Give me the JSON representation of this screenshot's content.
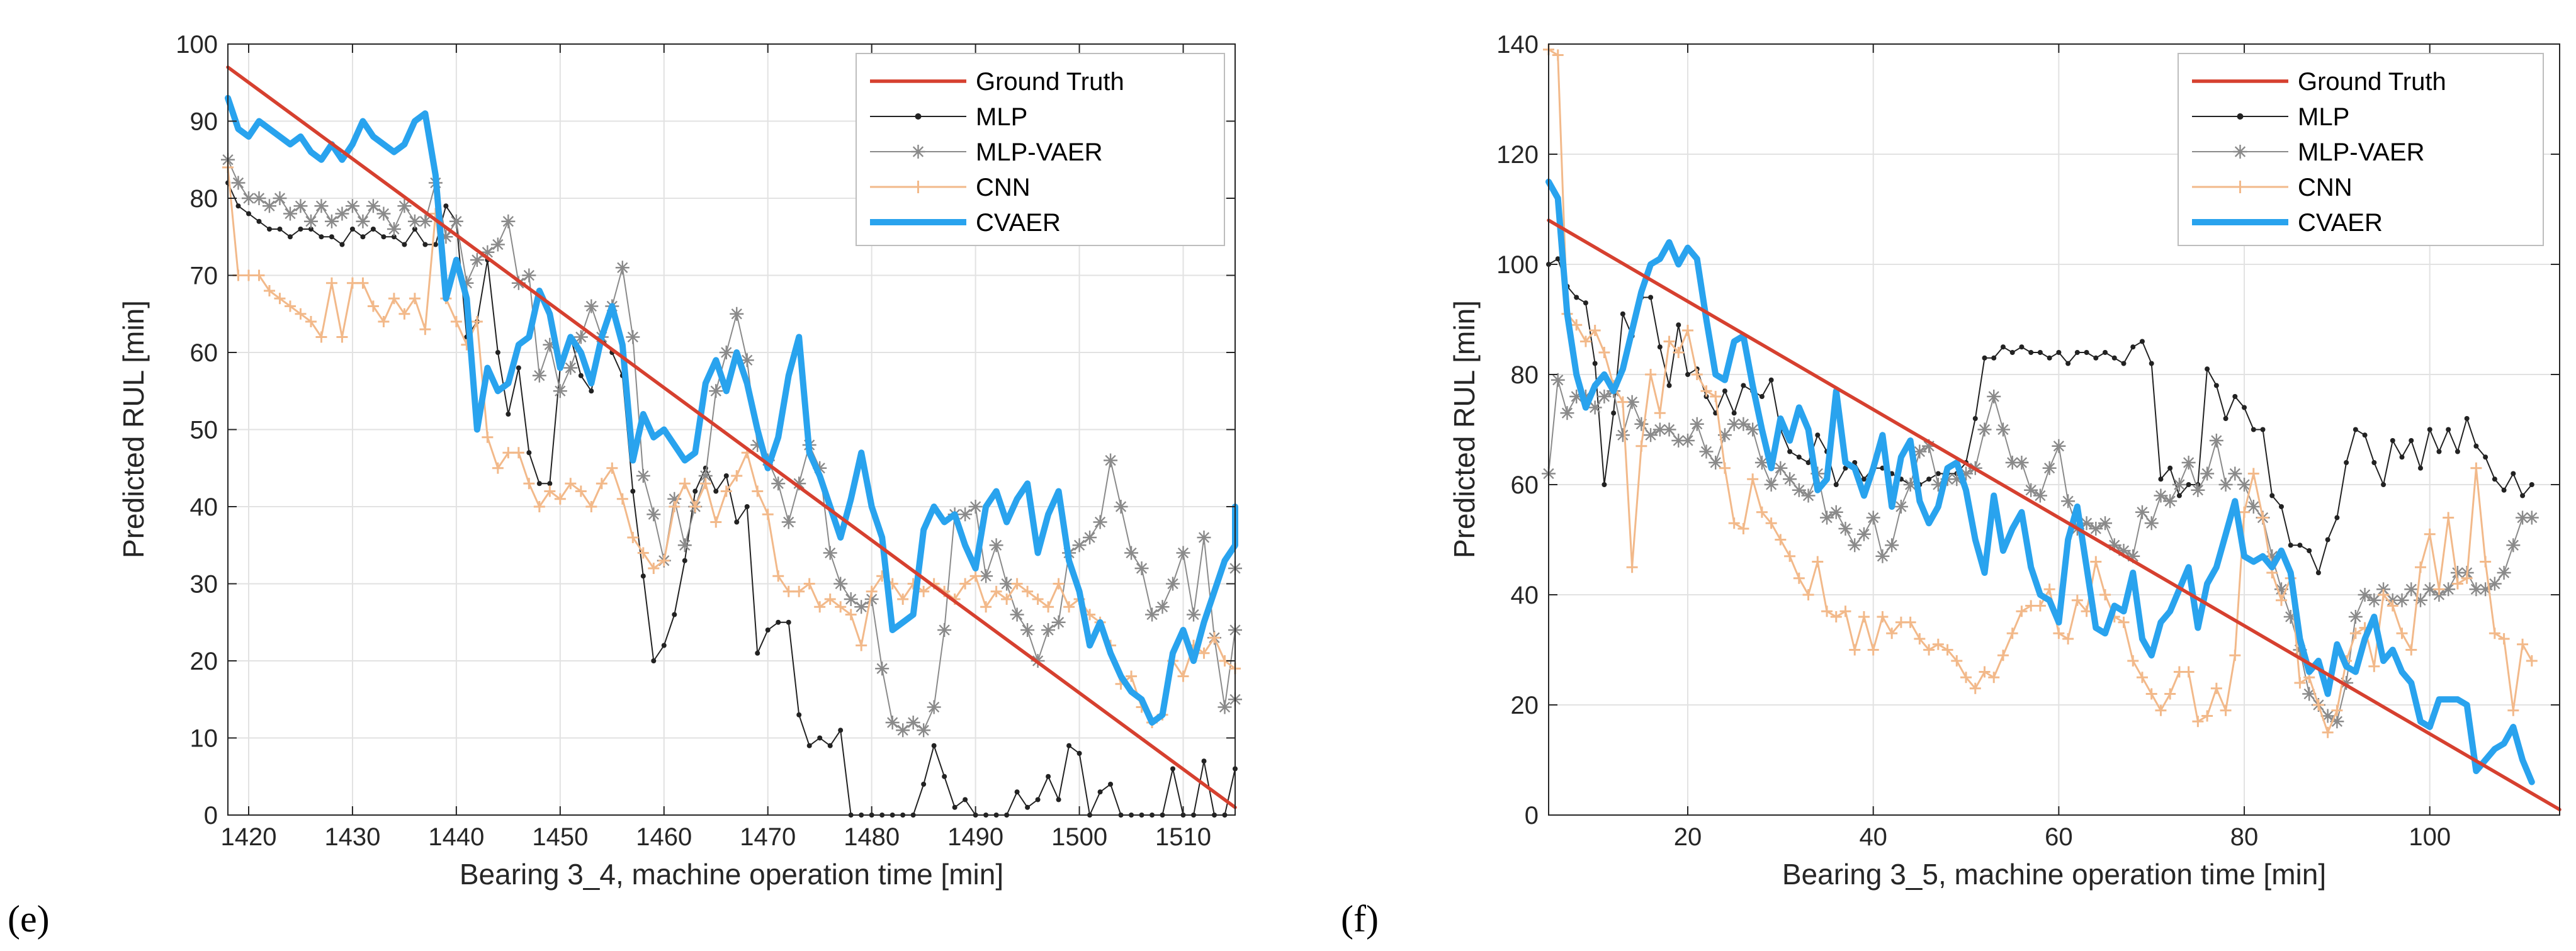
{
  "colors": {
    "ground_truth": "#d6402f",
    "mlp": "#222222",
    "mlp_vaer": "#8a8a8a",
    "cnn": "#f2b98a",
    "cvaer": "#29a3ee",
    "grid": "#e2e2e2",
    "axis": "#262626"
  },
  "chart_data": [
    {
      "type": "line",
      "panel_label": "(e)",
      "xlabel": "Bearing 3_4, machine operation time [min]",
      "ylabel": "Predicted RUL [min]",
      "xlim": [
        1418,
        1515
      ],
      "ylim": [
        0,
        100
      ],
      "xticks": [
        1420,
        1430,
        1440,
        1450,
        1460,
        1470,
        1480,
        1490,
        1500,
        1510
      ],
      "yticks": [
        0,
        10,
        20,
        30,
        40,
        50,
        60,
        70,
        80,
        90,
        100
      ],
      "grid": true,
      "legend_position": "top-right",
      "legend": [
        "Ground Truth",
        "MLP",
        "MLP-VAER",
        "CNN",
        "CVAER"
      ],
      "series": [
        {
          "name": "Ground Truth",
          "style": "solid",
          "x": [
            1418,
            1515
          ],
          "y": [
            97,
            1
          ]
        },
        {
          "name": "MLP",
          "style": "dot-marker",
          "x0": 1418,
          "step": 1,
          "y": [
            82,
            79,
            78,
            77,
            76,
            76,
            75,
            76,
            76,
            75,
            75,
            74,
            76,
            75,
            76,
            75,
            75,
            74,
            76,
            74,
            74,
            79,
            77,
            62,
            64,
            72,
            60,
            52,
            58,
            47,
            43,
            43,
            58,
            62,
            57,
            55,
            62,
            60,
            57,
            42,
            31,
            20,
            22,
            26,
            33,
            42,
            45,
            42,
            44,
            38,
            40,
            21,
            24,
            25,
            25,
            13,
            9,
            10,
            9,
            11,
            0,
            0,
            0,
            0,
            0,
            0,
            0,
            4,
            9,
            5,
            1,
            2,
            0,
            0,
            0,
            0,
            3,
            1,
            2,
            5,
            2,
            9,
            8,
            0,
            3,
            4,
            0,
            0,
            0,
            0,
            0,
            6,
            0,
            0,
            7,
            0,
            0,
            6
          ]
        },
        {
          "name": "MLP-VAER",
          "style": "star-marker",
          "x0": 1418,
          "step": 1,
          "y": [
            85,
            82,
            80,
            80,
            79,
            80,
            78,
            79,
            77,
            79,
            77,
            78,
            79,
            77,
            79,
            78,
            76,
            79,
            77,
            77,
            82,
            75,
            77,
            69,
            72,
            73,
            74,
            77,
            69,
            70,
            57,
            61,
            55,
            58,
            62,
            66,
            62,
            66,
            71,
            62,
            44,
            39,
            33,
            41,
            35,
            40,
            44,
            55,
            60,
            65,
            59,
            48,
            46,
            43,
            38,
            43,
            48,
            45,
            34,
            30,
            28,
            27,
            28,
            19,
            12,
            11,
            12,
            11,
            14,
            24,
            39,
            39,
            40,
            31,
            35,
            30,
            26,
            24,
            20,
            24,
            25,
            34,
            35,
            36,
            38,
            46,
            40,
            34,
            32,
            26,
            27,
            30,
            34,
            26,
            36,
            23,
            14,
            24,
            15,
            32
          ]
        },
        {
          "name": "CNN",
          "style": "plus-marker",
          "x0": 1418,
          "step": 1,
          "y": [
            84,
            70,
            70,
            70,
            68,
            67,
            66,
            65,
            64,
            62,
            69,
            62,
            69,
            69,
            66,
            64,
            67,
            65,
            67,
            63,
            78,
            67,
            64,
            61,
            64,
            49,
            45,
            47,
            47,
            43,
            40,
            42,
            41,
            43,
            42,
            40,
            43,
            45,
            41,
            36,
            34,
            32,
            33,
            40,
            43,
            40,
            43,
            38,
            42,
            44,
            47,
            42,
            39,
            31,
            29,
            29,
            30,
            27,
            28,
            27,
            26,
            22,
            29,
            31,
            30,
            28,
            30,
            29,
            30,
            29,
            28,
            30,
            31,
            27,
            29,
            28,
            30,
            29,
            28,
            27,
            30,
            27,
            28,
            26,
            25,
            22,
            17,
            18,
            14,
            12,
            13,
            20,
            18,
            22,
            21,
            23,
            20,
            19
          ]
        },
        {
          "name": "CVAER",
          "style": "thick",
          "x0": 1418,
          "step": 1,
          "y": [
            93,
            89,
            88,
            90,
            89,
            88,
            87,
            88,
            86,
            85,
            87,
            85,
            87,
            90,
            88,
            87,
            86,
            87,
            90,
            91,
            83,
            67,
            72,
            67,
            50,
            58,
            55,
            56,
            61,
            62,
            68,
            65,
            58,
            62,
            60,
            56,
            62,
            66,
            61,
            46,
            52,
            49,
            50,
            48,
            46,
            47,
            56,
            59,
            55,
            60,
            56,
            50,
            45,
            49,
            57,
            62,
            47,
            44,
            40,
            36,
            41,
            47,
            40,
            36,
            24,
            25,
            26,
            37,
            40,
            38,
            39,
            35,
            32,
            40,
            42,
            38,
            41,
            43,
            34,
            39,
            42,
            33,
            29,
            22,
            25,
            21,
            18,
            16,
            15,
            12,
            13,
            21,
            24,
            20,
            25,
            29,
            33,
            35,
            40,
            40
          ]
        }
      ]
    },
    {
      "type": "line",
      "panel_label": "(f)",
      "xlabel": "Bearing 3_5, machine operation time [min]",
      "ylabel": "Predicted RUL [min]",
      "xlim": [
        5,
        114
      ],
      "ylim": [
        0,
        140
      ],
      "xticks": [
        20,
        40,
        60,
        80,
        100
      ],
      "yticks": [
        0,
        20,
        40,
        60,
        80,
        100,
        120,
        140
      ],
      "grid": true,
      "legend_position": "top-right",
      "legend": [
        "Ground Truth",
        "MLP",
        "MLP-VAER",
        "CNN",
        "CVAER"
      ],
      "series": [
        {
          "name": "Ground Truth",
          "style": "solid",
          "x": [
            5,
            114
          ],
          "y": [
            108,
            1
          ]
        },
        {
          "name": "MLP",
          "style": "dot-marker",
          "x0": 5,
          "step": 1,
          "y": [
            100,
            101,
            96,
            94,
            93,
            82,
            60,
            73,
            91,
            87,
            94,
            94,
            85,
            78,
            89,
            80,
            81,
            76,
            73,
            77,
            73,
            78,
            77,
            76,
            79,
            70,
            66,
            65,
            64,
            69,
            66,
            60,
            63,
            64,
            61,
            63,
            63,
            62,
            61,
            60,
            60,
            61,
            62,
            62,
            62,
            64,
            72,
            83,
            83,
            85,
            84,
            85,
            84,
            84,
            83,
            84,
            82,
            84,
            84,
            83,
            84,
            83,
            82,
            85,
            86,
            82,
            61,
            63,
            58,
            60,
            60,
            81,
            78,
            72,
            76,
            74,
            70,
            70,
            58,
            56,
            49,
            49,
            48,
            44,
            50,
            54,
            64,
            70,
            69,
            64,
            60,
            68,
            65,
            68,
            63,
            70,
            66,
            70,
            66,
            72,
            67,
            65,
            61,
            59,
            62,
            58,
            60
          ]
        },
        {
          "name": "MLP-VAER",
          "style": "star-marker",
          "x0": 5,
          "step": 1,
          "y": [
            62,
            79,
            73,
            76,
            76,
            74,
            76,
            77,
            69,
            75,
            71,
            69,
            70,
            70,
            68,
            68,
            71,
            66,
            64,
            69,
            71,
            71,
            70,
            64,
            60,
            63,
            61,
            59,
            58,
            62,
            54,
            55,
            52,
            49,
            51,
            54,
            47,
            49,
            56,
            60,
            66,
            67,
            60,
            61,
            61,
            62,
            63,
            70,
            76,
            70,
            64,
            64,
            59,
            58,
            63,
            67,
            57,
            52,
            53,
            52,
            53,
            49,
            48,
            47,
            55,
            53,
            58,
            57,
            60,
            64,
            59,
            62,
            68,
            60,
            62,
            60,
            56,
            54,
            47,
            41,
            36,
            30,
            22,
            20,
            18,
            17,
            24,
            36,
            40,
            39,
            41,
            39,
            39,
            41,
            39,
            41,
            40,
            41,
            44,
            44,
            41,
            41,
            42,
            44,
            49,
            54,
            54
          ]
        },
        {
          "name": "CNN",
          "style": "plus-marker",
          "x0": 5,
          "step": 1,
          "y": [
            139,
            138,
            91,
            89,
            86,
            88,
            84,
            78,
            75,
            45,
            67,
            80,
            73,
            86,
            84,
            88,
            80,
            77,
            76,
            63,
            53,
            52,
            61,
            55,
            53,
            50,
            47,
            43,
            40,
            46,
            37,
            36,
            37,
            30,
            36,
            30,
            36,
            33,
            35,
            35,
            32,
            30,
            31,
            30,
            28,
            25,
            23,
            26,
            25,
            29,
            33,
            37,
            38,
            38,
            41,
            33,
            32,
            39,
            37,
            46,
            40,
            36,
            35,
            28,
            25,
            22,
            19,
            22,
            26,
            26,
            17,
            18,
            23,
            19,
            29,
            55,
            62,
            54,
            44,
            39,
            43,
            24,
            25,
            20,
            15,
            19,
            28,
            33,
            34,
            27,
            40,
            38,
            33,
            30,
            45,
            51,
            41,
            54,
            42,
            43,
            63,
            46,
            33,
            32,
            19,
            31,
            28
          ]
        },
        {
          "name": "CVAER",
          "style": "thick",
          "x0": 5,
          "step": 1,
          "y": [
            115,
            112,
            91,
            80,
            74,
            78,
            80,
            77,
            81,
            88,
            95,
            100,
            101,
            104,
            100,
            103,
            101,
            90,
            80,
            79,
            86,
            87,
            78,
            70,
            63,
            72,
            68,
            74,
            70,
            59,
            61,
            77,
            64,
            63,
            58,
            63,
            69,
            56,
            65,
            68,
            57,
            53,
            56,
            63,
            64,
            59,
            50,
            44,
            58,
            48,
            52,
            55,
            45,
            40,
            39,
            35,
            50,
            56,
            45,
            34,
            33,
            38,
            37,
            44,
            32,
            29,
            35,
            37,
            41,
            45,
            34,
            42,
            45,
            51,
            57,
            47,
            46,
            47,
            45,
            48,
            44,
            32,
            26,
            28,
            22,
            31,
            27,
            26,
            32,
            36,
            28,
            30,
            26,
            24,
            17,
            16,
            21,
            21,
            21,
            20,
            8,
            10,
            12,
            13,
            16,
            10,
            6
          ]
        }
      ]
    }
  ]
}
